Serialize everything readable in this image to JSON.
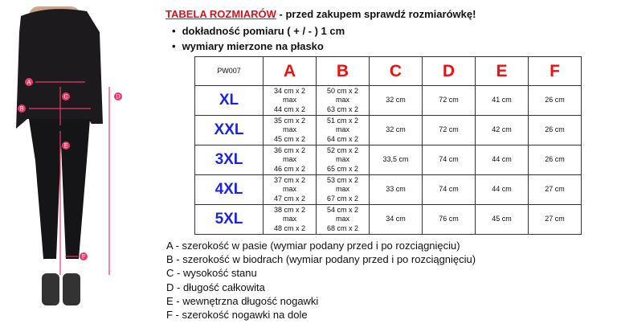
{
  "header": {
    "title_red": "TABELA ROZMIARÓW",
    "title_rest": " - przed zakupem sprawdź rozmiarówkę!",
    "bullets": [
      "dokładność pomiaru ( + / - ) 1 cm",
      "wymiary mierzone na płasko"
    ]
  },
  "figure": {
    "markers": [
      "A",
      "B",
      "C",
      "D",
      "E",
      "F"
    ],
    "accent": "#e8396a"
  },
  "table": {
    "code": "PW007",
    "columns": [
      "A",
      "B",
      "C",
      "D",
      "E",
      "F"
    ],
    "rows": [
      {
        "size": "XL",
        "a": [
          "34 cm x 2",
          "max",
          "44 cm x 2"
        ],
        "b": [
          "50 cm x 2",
          "max",
          "63 cm x 2"
        ],
        "c": "32 cm",
        "d": "72 cm",
        "e": "41 cm",
        "f": "26 cm"
      },
      {
        "size": "XXL",
        "a": [
          "35 cm x 2",
          "max",
          "45 cm x 2"
        ],
        "b": [
          "51 cm x 2",
          "max",
          "64 cm x 2"
        ],
        "c": "32 cm",
        "d": "72 cm",
        "e": "42 cm",
        "f": "26 cm"
      },
      {
        "size": "3XL",
        "a": [
          "36 cm x 2",
          "max",
          "46 cm x 2"
        ],
        "b": [
          "52 cm x 2",
          "max",
          "65 cm x 2"
        ],
        "c": "33,5 cm",
        "d": "74 cm",
        "e": "44 cm",
        "f": "26 cm"
      },
      {
        "size": "4XL",
        "a": [
          "37 cm x 2",
          "max",
          "47 cm x 2"
        ],
        "b": [
          "53 cm x 2",
          "max",
          "67 cm x 2"
        ],
        "c": "33 cm",
        "d": "74 cm",
        "e": "44 cm",
        "f": "27 cm"
      },
      {
        "size": "5XL",
        "a": [
          "38 cm x 2",
          "max",
          "48 cm x 2"
        ],
        "b": [
          "54 cm x 2",
          "max",
          "68 cm x 2"
        ],
        "c": "34 cm",
        "d": "76 cm",
        "e": "45 cm",
        "f": "27 cm"
      }
    ]
  },
  "legend": [
    "A - szerokość w pasie (wymiar podany przed i po rozciągnięciu)",
    "B - szerokość w biodrach (wymiar podany przed i po rozciągnięciu)",
    "C - wysokość stanu",
    "D - długość całkowita",
    "E - wewnętrzna długość nogawki",
    "F - szerokość nogawki na dole"
  ],
  "colors": {
    "letters": "#ee1111",
    "sizes": "#1a24e8",
    "title": "#e0101a"
  }
}
